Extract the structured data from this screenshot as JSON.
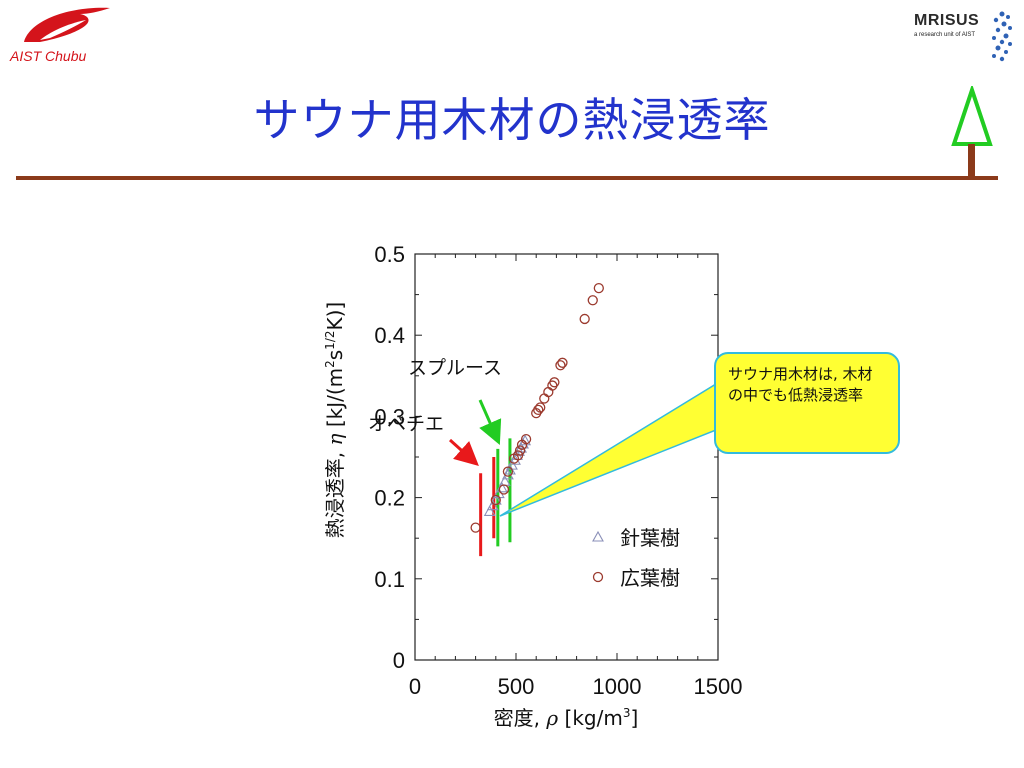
{
  "header": {
    "logo_left_text": "AIST Chubu",
    "logo_right_title": "MRISUS",
    "logo_right_subtitle": "a research unit of AIST",
    "title": "サウナ用木材の熱浸透率"
  },
  "colors": {
    "title": "#2233cc",
    "rule": "#8b3a1a",
    "logo_red": "#d4141b",
    "softwood_marker": "#8a8fb8",
    "hardwood_marker": "#9b3a2e",
    "ovehchie_arrow": "#e8191b",
    "spruce_arrow": "#22cc22",
    "callout_fill": "#ffff33",
    "callout_border": "#33bbdd",
    "tree_green": "#22cc22",
    "tree_trunk": "#8b3a1a"
  },
  "annotations": {
    "spruce_label": "スプルース",
    "obeche_label": "オベチエ",
    "callout_text": "サウナ用木材は, 木材の中でも低熱浸透率"
  },
  "chart_data": {
    "type": "scatter",
    "xlabel_text": "密度, ",
    "xlabel_symbol": "ρ",
    "xlabel_unit": " [kg/m",
    "xlabel_sup": "3",
    "xlabel_close": "]",
    "ylabel_text": "熱浸透率, ",
    "ylabel_symbol": "η",
    "ylabel_unit": " [kJ/(m",
    "ylabel_sup1": "2",
    "ylabel_mid": "s",
    "ylabel_sup2": "1/2",
    "ylabel_close": "K)]",
    "xlim": [
      0,
      1500
    ],
    "ylim": [
      0,
      0.5
    ],
    "x_ticks": [
      0,
      500,
      1000,
      1500
    ],
    "x_tick_labels": [
      "0",
      "500",
      "1000",
      "1500"
    ],
    "y_ticks": [
      0,
      0.1,
      0.2,
      0.3,
      0.4,
      0.5
    ],
    "y_tick_labels": [
      "0",
      "0.1",
      "0.2",
      "0.3",
      "0.4",
      "0.5"
    ],
    "legend": [
      "針葉樹",
      "広葉樹"
    ],
    "legend_position": "lower-right",
    "series": [
      {
        "name": "針葉樹",
        "marker": "triangle",
        "points": [
          [
            370,
            0.183
          ],
          [
            385,
            0.19
          ],
          [
            400,
            0.197
          ],
          [
            415,
            0.205
          ],
          [
            430,
            0.212
          ],
          [
            445,
            0.22
          ],
          [
            460,
            0.228
          ],
          [
            470,
            0.234
          ],
          [
            480,
            0.24
          ],
          [
            495,
            0.246
          ],
          [
            505,
            0.252
          ],
          [
            515,
            0.257
          ],
          [
            525,
            0.261
          ],
          [
            535,
            0.266
          ],
          [
            545,
            0.27
          ]
        ]
      },
      {
        "name": "広葉樹",
        "marker": "circle",
        "points": [
          [
            300,
            0.163
          ],
          [
            400,
            0.197
          ],
          [
            440,
            0.21
          ],
          [
            460,
            0.232
          ],
          [
            490,
            0.248
          ],
          [
            510,
            0.252
          ],
          [
            520,
            0.258
          ],
          [
            530,
            0.265
          ],
          [
            550,
            0.272
          ],
          [
            600,
            0.304
          ],
          [
            610,
            0.308
          ],
          [
            620,
            0.311
          ],
          [
            640,
            0.322
          ],
          [
            660,
            0.33
          ],
          [
            680,
            0.338
          ],
          [
            690,
            0.342
          ],
          [
            720,
            0.363
          ],
          [
            730,
            0.366
          ],
          [
            840,
            0.42
          ],
          [
            880,
            0.443
          ],
          [
            910,
            0.458
          ]
        ]
      }
    ],
    "obeche_density_lines": [
      325,
      390
    ],
    "spruce_density_lines": [
      410,
      470
    ]
  }
}
